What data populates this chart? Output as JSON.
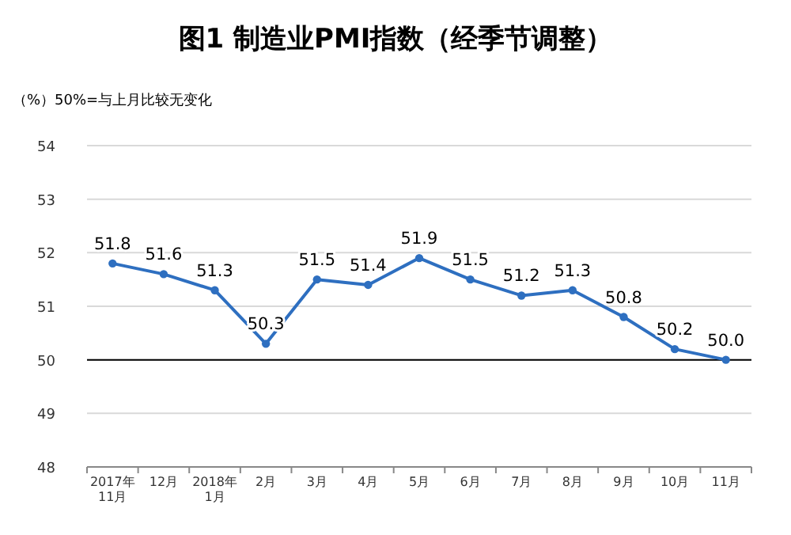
{
  "chart_data": {
    "type": "line",
    "title": "图1 制造业PMI指数（经季节调整）",
    "subtitle": "（%）50%=与上月比较无变化",
    "categories": [
      "2017年\n11月",
      "12月",
      "2018年\n1月",
      "2月",
      "3月",
      "4月",
      "5月",
      "6月",
      "7月",
      "8月",
      "9月",
      "10月",
      "11月"
    ],
    "series": [
      {
        "color": "#2e6fc0",
        "values": [
          51.8,
          51.6,
          51.3,
          50.3,
          51.5,
          51.4,
          51.9,
          51.5,
          51.2,
          51.3,
          50.8,
          50.2,
          50.0
        ],
        "value_labels": [
          "51.8",
          "51.6",
          "51.3",
          "50.3",
          "51.5",
          "51.4",
          "51.9",
          "51.5",
          "51.2",
          "51.3",
          "50.8",
          "50.2",
          "50.0"
        ]
      }
    ],
    "ylim": [
      48,
      54
    ],
    "yticks": [
      48,
      49,
      50,
      51,
      52,
      53,
      54
    ],
    "grid": "y",
    "marker": "circle",
    "line_style": "solid",
    "ref_lines": [
      {
        "axis": "y",
        "value": 50,
        "color": "#000000"
      }
    ]
  }
}
